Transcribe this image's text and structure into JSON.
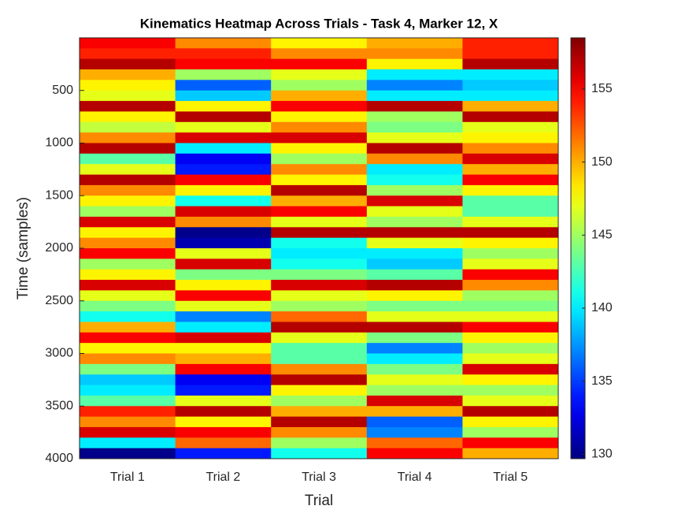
{
  "chart_data": {
    "type": "heatmap",
    "title": "Kinematics Heatmap Across Trials - Task 4, Marker 12, X",
    "xlabel": "Trial",
    "ylabel": "Time (samples)",
    "categories": [
      "Trial 1",
      "Trial 2",
      "Trial 3",
      "Trial 4",
      "Trial 5"
    ],
    "ybins": [
      0,
      100,
      200,
      300,
      400,
      500,
      600,
      700,
      800,
      900,
      1000,
      1100,
      1200,
      1300,
      1400,
      1500,
      1600,
      1700,
      1800,
      1900,
      2000,
      2100,
      2200,
      2300,
      2400,
      2500,
      2600,
      2700,
      2800,
      2900,
      3000,
      3100,
      3200,
      3300,
      3400,
      3500,
      3600,
      3700,
      3800,
      3900,
      4000
    ],
    "ylim": [
      0,
      4000
    ],
    "y_reversed": true,
    "yticks": [
      500,
      1000,
      1500,
      2000,
      2500,
      3000,
      3500,
      4000
    ],
    "colormap": "jet",
    "clim": [
      129.7,
      158.5
    ],
    "cticks": [
      130,
      135,
      140,
      145,
      150,
      155
    ],
    "values": [
      [
        155,
        154,
        157,
        150,
        148,
        147,
        157,
        148,
        146,
        151,
        157,
        143,
        147,
        157,
        151,
        148,
        145,
        156,
        148,
        151,
        155,
        145,
        148,
        156,
        147,
        144,
        141,
        150,
        155,
        148,
        151,
        144,
        139,
        140,
        143,
        154,
        151,
        156,
        140,
        130
      ],
      [
        151,
        154,
        155,
        145,
        136,
        139,
        148,
        157,
        147,
        156,
        140,
        133,
        134,
        155,
        148,
        141,
        156,
        151,
        130,
        131,
        147,
        156,
        144,
        148,
        155,
        147,
        137,
        140,
        156,
        148,
        150,
        155,
        133,
        134,
        147,
        157,
        148,
        155,
        152,
        134
      ],
      [
        148,
        151,
        155,
        147,
        145,
        150,
        155,
        148,
        151,
        156,
        148,
        145,
        151,
        148,
        157,
        150,
        155,
        147,
        157,
        141,
        140,
        141,
        144,
        156,
        147,
        145,
        152,
        157,
        147,
        143,
        143,
        151,
        157,
        148,
        145,
        150,
        157,
        151,
        145,
        141
      ],
      [
        150,
        151,
        148,
        140,
        137,
        140,
        157,
        145,
        144,
        147,
        157,
        151,
        140,
        141,
        145,
        156,
        147,
        145,
        157,
        147,
        140,
        139,
        143,
        157,
        148,
        144,
        147,
        157,
        144,
        137,
        140,
        144,
        147,
        145,
        156,
        150,
        136,
        137,
        152,
        155
      ],
      [
        154,
        154,
        157,
        140,
        139,
        140,
        150,
        157,
        147,
        148,
        151,
        156,
        150,
        155,
        148,
        143,
        143,
        147,
        157,
        148,
        145,
        147,
        155,
        151,
        145,
        144,
        147,
        155,
        148,
        145,
        147,
        156,
        148,
        145,
        147,
        157,
        148,
        145,
        155,
        150
      ]
    ]
  }
}
